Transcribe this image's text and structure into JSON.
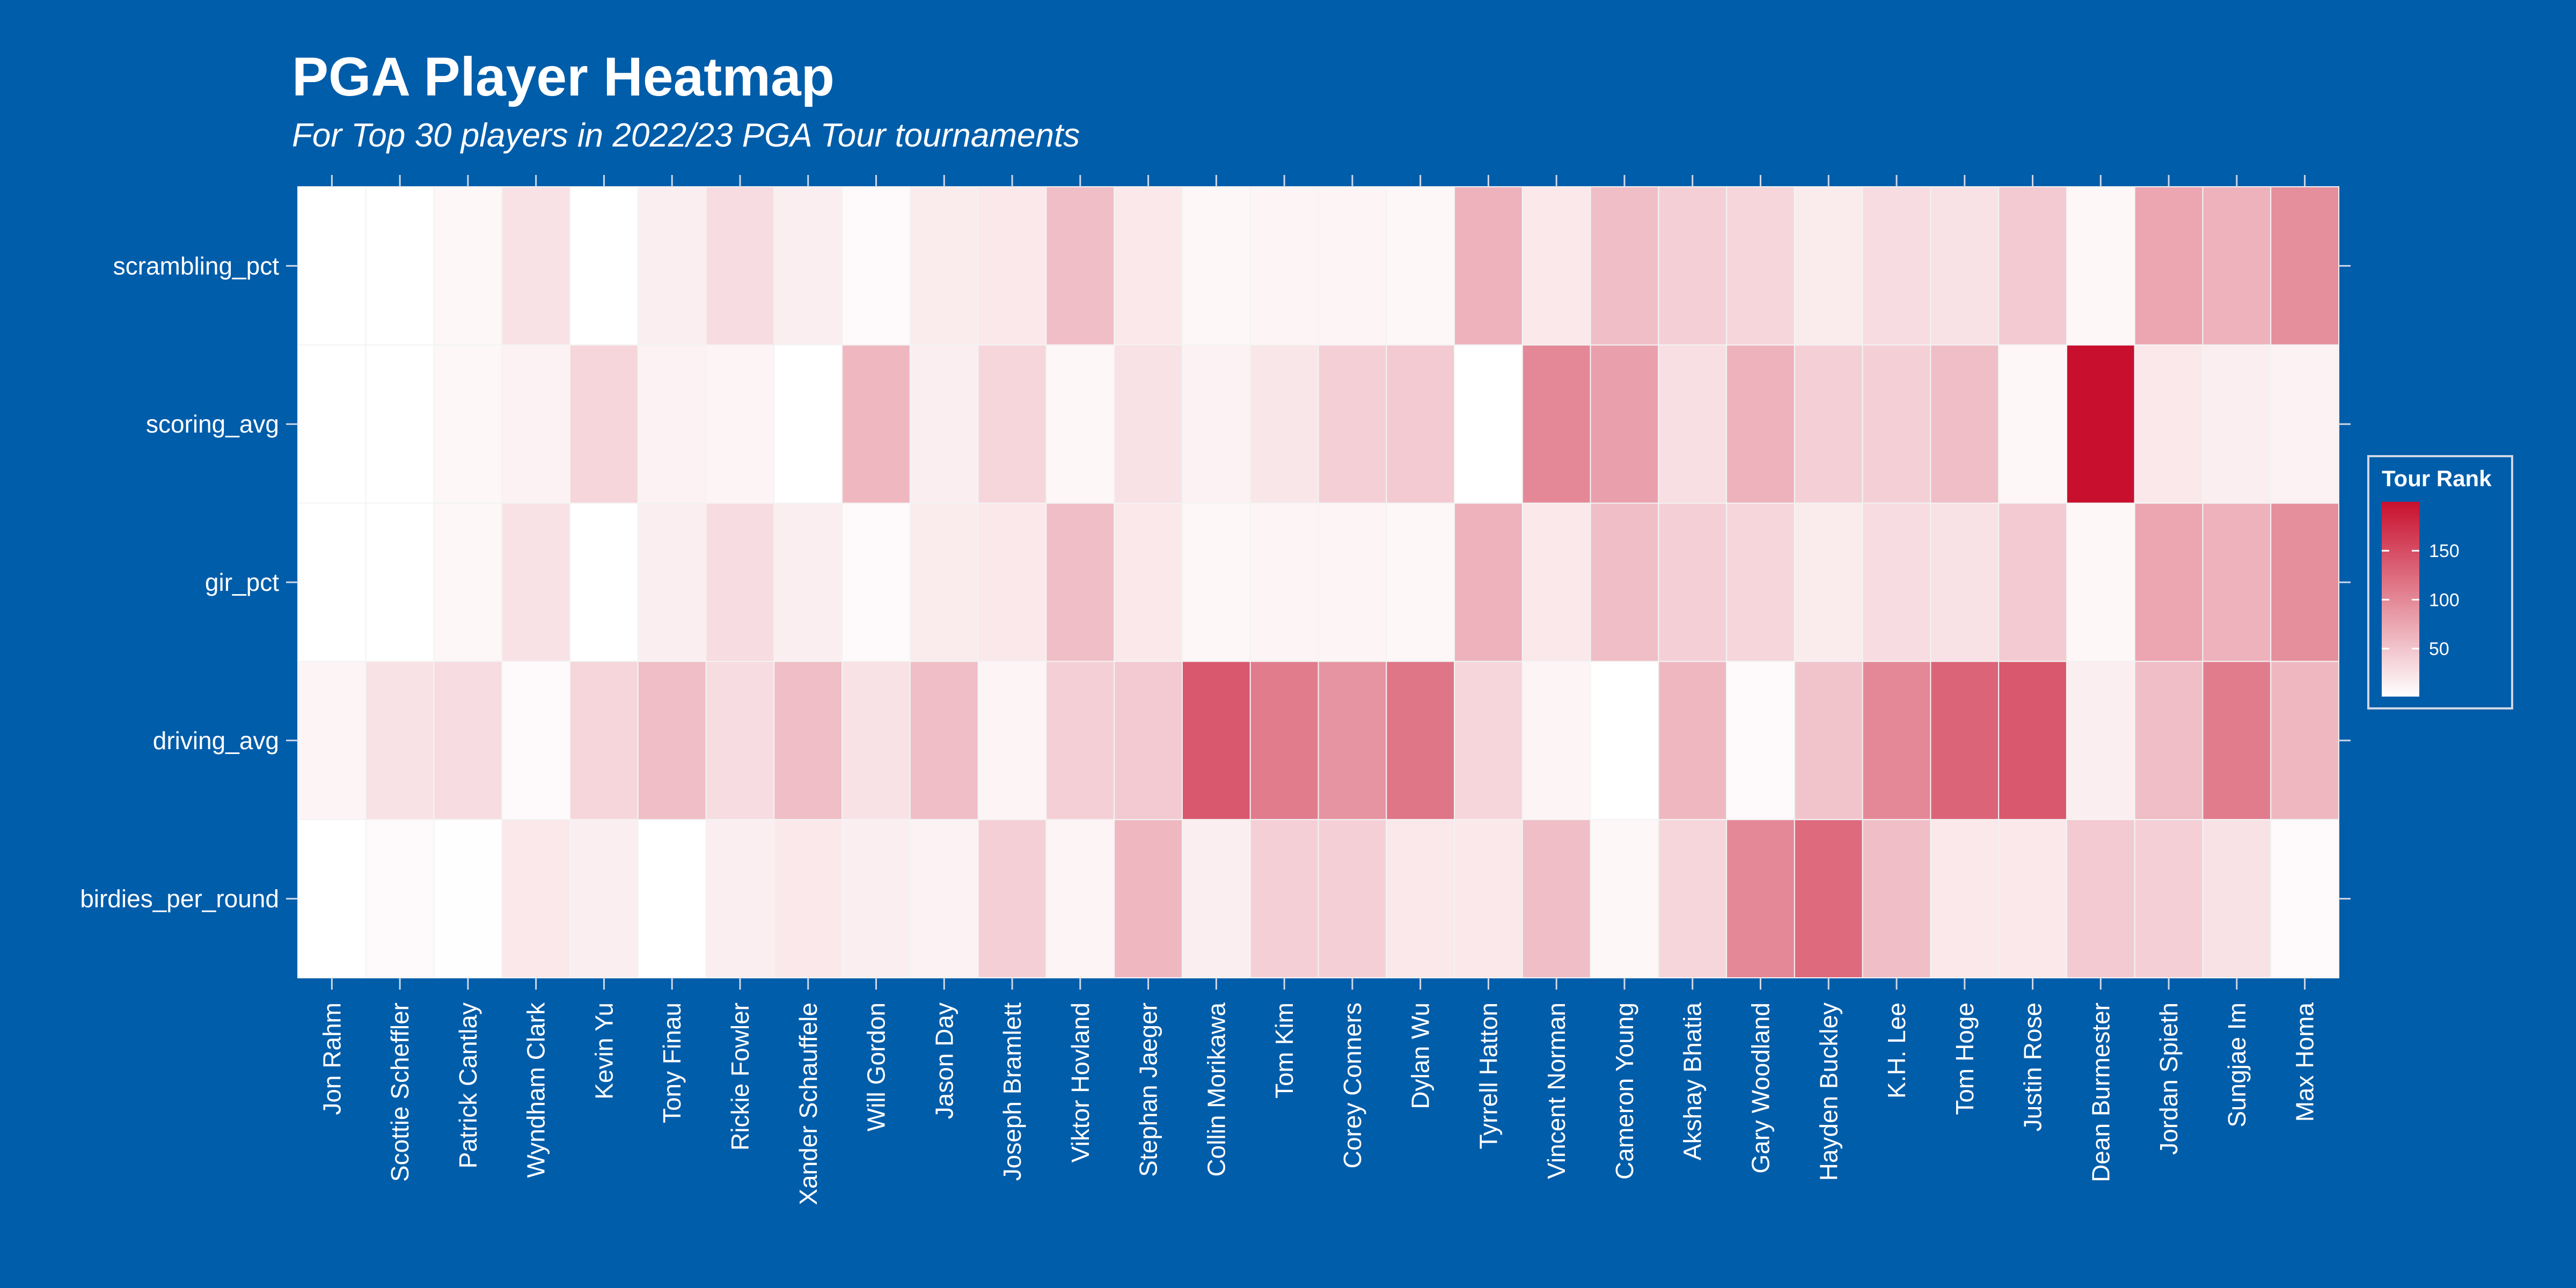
{
  "chart_data": {
    "type": "heatmap",
    "title": "PGA Player Heatmap",
    "subtitle": "For Top 30 players in 2022/23 PGA Tour tournaments",
    "x_categories": [
      "Jon Rahm",
      "Scottie Scheffler",
      "Patrick Cantlay",
      "Wyndham Clark",
      "Kevin Yu",
      "Tony Finau",
      "Rickie Fowler",
      "Xander Schauffele",
      "Will Gordon",
      "Jason Day",
      "Joseph Bramlett",
      "Viktor Hovland",
      "Stephan Jaeger",
      "Collin Morikawa",
      "Tom Kim",
      "Corey Conners",
      "Dylan Wu",
      "Tyrrell Hatton",
      "Vincent Norman",
      "Cameron Young",
      "Akshay Bhatia",
      "Gary Woodland",
      "Hayden Buckley",
      "K.H. Lee",
      "Tom Hoge",
      "Justin Rose",
      "Dean Burmester",
      "Jordan Spieth",
      "Sungjae Im",
      "Max Homa"
    ],
    "y_categories": [
      "scrambling_pct",
      "scoring_avg",
      "gir_pct",
      "driving_avg",
      "birdies_per_round"
    ],
    "values": [
      [
        1,
        1,
        8,
        25,
        1,
        15,
        30,
        15,
        5,
        18,
        20,
        55,
        20,
        8,
        10,
        10,
        8,
        65,
        20,
        55,
        40,
        35,
        18,
        30,
        25,
        45,
        8,
        75,
        65,
        95
      ],
      [
        1,
        1,
        8,
        12,
        35,
        12,
        10,
        1,
        60,
        15,
        35,
        8,
        25,
        12,
        22,
        40,
        45,
        1,
        100,
        80,
        28,
        65,
        40,
        40,
        55,
        8,
        200,
        20,
        15,
        12
      ],
      [
        1,
        1,
        8,
        25,
        1,
        15,
        30,
        15,
        5,
        18,
        20,
        55,
        20,
        8,
        10,
        10,
        8,
        65,
        20,
        55,
        40,
        35,
        18,
        30,
        25,
        45,
        8,
        75,
        65,
        95
      ],
      [
        10,
        25,
        30,
        5,
        35,
        55,
        30,
        55,
        25,
        55,
        10,
        40,
        45,
        140,
        110,
        90,
        115,
        35,
        10,
        1,
        60,
        5,
        50,
        100,
        130,
        140,
        15,
        55,
        110,
        60
      ],
      [
        1,
        5,
        2,
        20,
        15,
        1,
        15,
        20,
        15,
        12,
        40,
        10,
        60,
        15,
        40,
        40,
        20,
        20,
        55,
        8,
        35,
        100,
        125,
        55,
        20,
        20,
        45,
        40,
        25,
        5
      ]
    ],
    "value_name": "Tour Rank",
    "colorscale": {
      "low": "#ffffff",
      "high": "#c8102e",
      "min": 1,
      "max": 200
    },
    "legend": {
      "title": "Tour Rank",
      "ticks": [
        50,
        100,
        150
      ],
      "position": "right"
    }
  }
}
